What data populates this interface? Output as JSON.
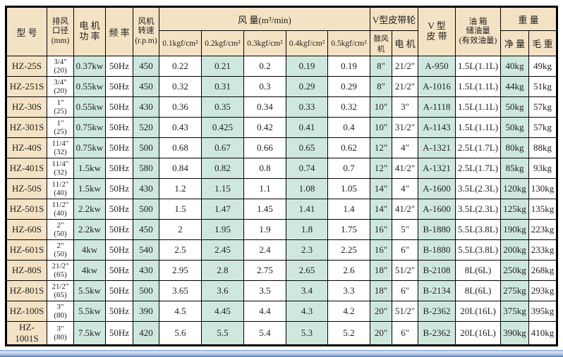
{
  "table": {
    "headers": {
      "model": "型 号",
      "port": "排风\n口径\n(mm)",
      "power": "电 机\n功 率",
      "freq": "频 率",
      "speed": "风机\n转速\n(r.p.m)",
      "airflow_group": "风  量(m³/min)",
      "airflow_cols": [
        "0.1kgf/cm²",
        "0.2kgf/cm²",
        "0.3kgf/cm²",
        "0.4kgf/cm²",
        "0.5kgf/cm²"
      ],
      "pulley_group": "V型皮带轮",
      "pulley_blower": "鼓风机",
      "pulley_motor": "电 机",
      "belt": "V 型\n皮 带",
      "oil": "油  箱\n储油量\n(有效油量)",
      "weight_group": "重  量",
      "weight_net": "净 量",
      "weight_gross": "毛 重"
    },
    "rows": [
      {
        "model": "HZ-25S",
        "port": "3/4\"\n(20)",
        "power": "0.37kw",
        "freq": "50Hz",
        "speed": "450",
        "airflow": [
          "0.22",
          "0.21",
          "0.2",
          "0.19",
          "0.19"
        ],
        "pulley_blower": "8\"",
        "pulley_motor": "21/2\"",
        "belt": "A-950",
        "oil": "1.5L(1.1L)",
        "net": "40kg",
        "gross": "49kg"
      },
      {
        "model": "HZ-251S",
        "port": "3/4\"\n(20)",
        "power": "0.55kw",
        "freq": "50Hz",
        "speed": "450",
        "airflow": [
          "0.32",
          "0.31",
          "0.3",
          "0.29",
          "0.29"
        ],
        "pulley_blower": "8\"",
        "pulley_motor": "21/2\"",
        "belt": "A-1016",
        "oil": "1.5L(1.1L)",
        "net": "44kg",
        "gross": "51kg"
      },
      {
        "model": "HZ-30S",
        "port": "1\"\n(25)",
        "power": "0.55kw",
        "freq": "50Hz",
        "speed": "430",
        "airflow": [
          "0.36",
          "0.35",
          "0.34",
          "0.33",
          "0.32"
        ],
        "pulley_blower": "10\"",
        "pulley_motor": "3\"",
        "belt": "A-1118",
        "oil": "1.5L(1.1L)",
        "net": "50kg",
        "gross": "57kg"
      },
      {
        "model": "HZ-301S",
        "port": "1\"\n(25)",
        "power": "0.75kw",
        "freq": "50Hz",
        "speed": "520",
        "airflow": [
          "0.43",
          "0.425",
          "0.42",
          "0.41",
          "0.4"
        ],
        "pulley_blower": "10\"",
        "pulley_motor": "31/2\"",
        "belt": "A-1143",
        "oil": "1.5L(1.1L)",
        "net": "50kg",
        "gross": "57kg"
      },
      {
        "model": "HZ-40S",
        "port": "11/4\"\n(32)",
        "power": "0.75kw",
        "freq": "50Hz",
        "speed": "500",
        "airflow": [
          "0.68",
          "0.67",
          "0.66",
          "0.65",
          "0.62"
        ],
        "pulley_blower": "12\"",
        "pulley_motor": "4\"",
        "belt": "A-1321",
        "oil": "2.5L(1.7L)",
        "net": "80kg",
        "gross": "88kg"
      },
      {
        "model": "HZ-401S",
        "port": "11/4\"\n(32)",
        "power": "1.5kw",
        "freq": "50Hz",
        "speed": "580",
        "airflow": [
          "0.84",
          "0.82",
          "0.8",
          "0.74",
          "0.7"
        ],
        "pulley_blower": "12\"",
        "pulley_motor": "41/2\"",
        "belt": "A-1321",
        "oil": "2.5L(1.7L)",
        "net": "85kg",
        "gross": "93kg"
      },
      {
        "model": "HZ-50S",
        "port": "11/2\"\n(40)",
        "power": "1.5kw",
        "freq": "50Hz",
        "speed": "430",
        "airflow": [
          "1.2",
          "1.15",
          "1.1",
          "1.08",
          "1.05"
        ],
        "pulley_blower": "14\"",
        "pulley_motor": "4\"",
        "belt": "A-1600",
        "oil": "3.5L(2.3L)",
        "net": "120kg",
        "gross": "130kg"
      },
      {
        "model": "HZ-501S",
        "port": "11/2\"\n(40)",
        "power": "2.2kw",
        "freq": "50Hz",
        "speed": "500",
        "airflow": [
          "1.5",
          "1.47",
          "1.45",
          "1.41",
          "1.4"
        ],
        "pulley_blower": "14\"",
        "pulley_motor": "41/2\"",
        "belt": "A-1600",
        "oil": "3.5L(2.3L)",
        "net": "125kg",
        "gross": "135kg"
      },
      {
        "model": "HZ-60S",
        "port": "2\"\n(50)",
        "power": "2.2kw",
        "freq": "50Hz",
        "speed": "450",
        "airflow": [
          "2",
          "1.95",
          "1.9",
          "1.8",
          "1.75"
        ],
        "pulley_blower": "16\"",
        "pulley_motor": "5\"",
        "belt": "B-1880",
        "oil": "5.5L(3.8L)",
        "net": "190kg",
        "gross": "223kg"
      },
      {
        "model": "HZ-601S",
        "port": "2\"\n(50)",
        "power": "4kw",
        "freq": "50Hz",
        "speed": "540",
        "airflow": [
          "2.5",
          "2.45",
          "2.4",
          "2.3",
          "2.25"
        ],
        "pulley_blower": "16\"",
        "pulley_motor": "6\"",
        "belt": "B-1880",
        "oil": "5.5L(3.8L)",
        "net": "200kg",
        "gross": "233kg"
      },
      {
        "model": "HZ-80S",
        "port": "21/2\"\n(65)",
        "power": "4kw",
        "freq": "50Hz",
        "speed": "430",
        "airflow": [
          "2.95",
          "2.8",
          "2.75",
          "2.65",
          "2.6"
        ],
        "pulley_blower": "18\"",
        "pulley_motor": "51/2\"",
        "belt": "B-2108",
        "oil": "8L(6L)",
        "net": "250kg",
        "gross": "268kg"
      },
      {
        "model": "HZ-801S",
        "port": "21/2\"\n(65)",
        "power": "5.5kw",
        "freq": "50Hz",
        "speed": "500",
        "airflow": [
          "3.65",
          "3.6",
          "3.5",
          "3.4",
          "3.3"
        ],
        "pulley_blower": "18\"",
        "pulley_motor": "6\"",
        "belt": "B-2134",
        "oil": "8L(6L)",
        "net": "275kg",
        "gross": "293kg"
      },
      {
        "model": "HZ-100S",
        "port": "3\"\n(80)",
        "power": "5.5kw",
        "freq": "50Hz",
        "speed": "390",
        "airflow": [
          "4.5",
          "4.45",
          "4.4",
          "4.3",
          "4.2"
        ],
        "pulley_blower": "20\"",
        "pulley_motor": "51/2\"",
        "belt": "B-2362",
        "oil": "20L(16L)",
        "net": "375kg",
        "gross": "395kg"
      },
      {
        "model": "HZ-1001S",
        "port": "3\"\n(80)",
        "power": "7.5kw",
        "freq": "50Hz",
        "speed": "420",
        "airflow": [
          "5.6",
          "5.5",
          "5.4",
          "5.3",
          "5.2"
        ],
        "pulley_blower": "20\"",
        "pulley_motor": "6\"",
        "belt": "B-2362",
        "oil": "20L(16L)",
        "net": "390kg",
        "gross": "410kg"
      }
    ]
  },
  "colors": {
    "header_bg": "#f4e2c4",
    "accent_column_bg": "#cfe8de",
    "table_border": "#000000",
    "bottom_bar_blue": "#3c6cae"
  }
}
